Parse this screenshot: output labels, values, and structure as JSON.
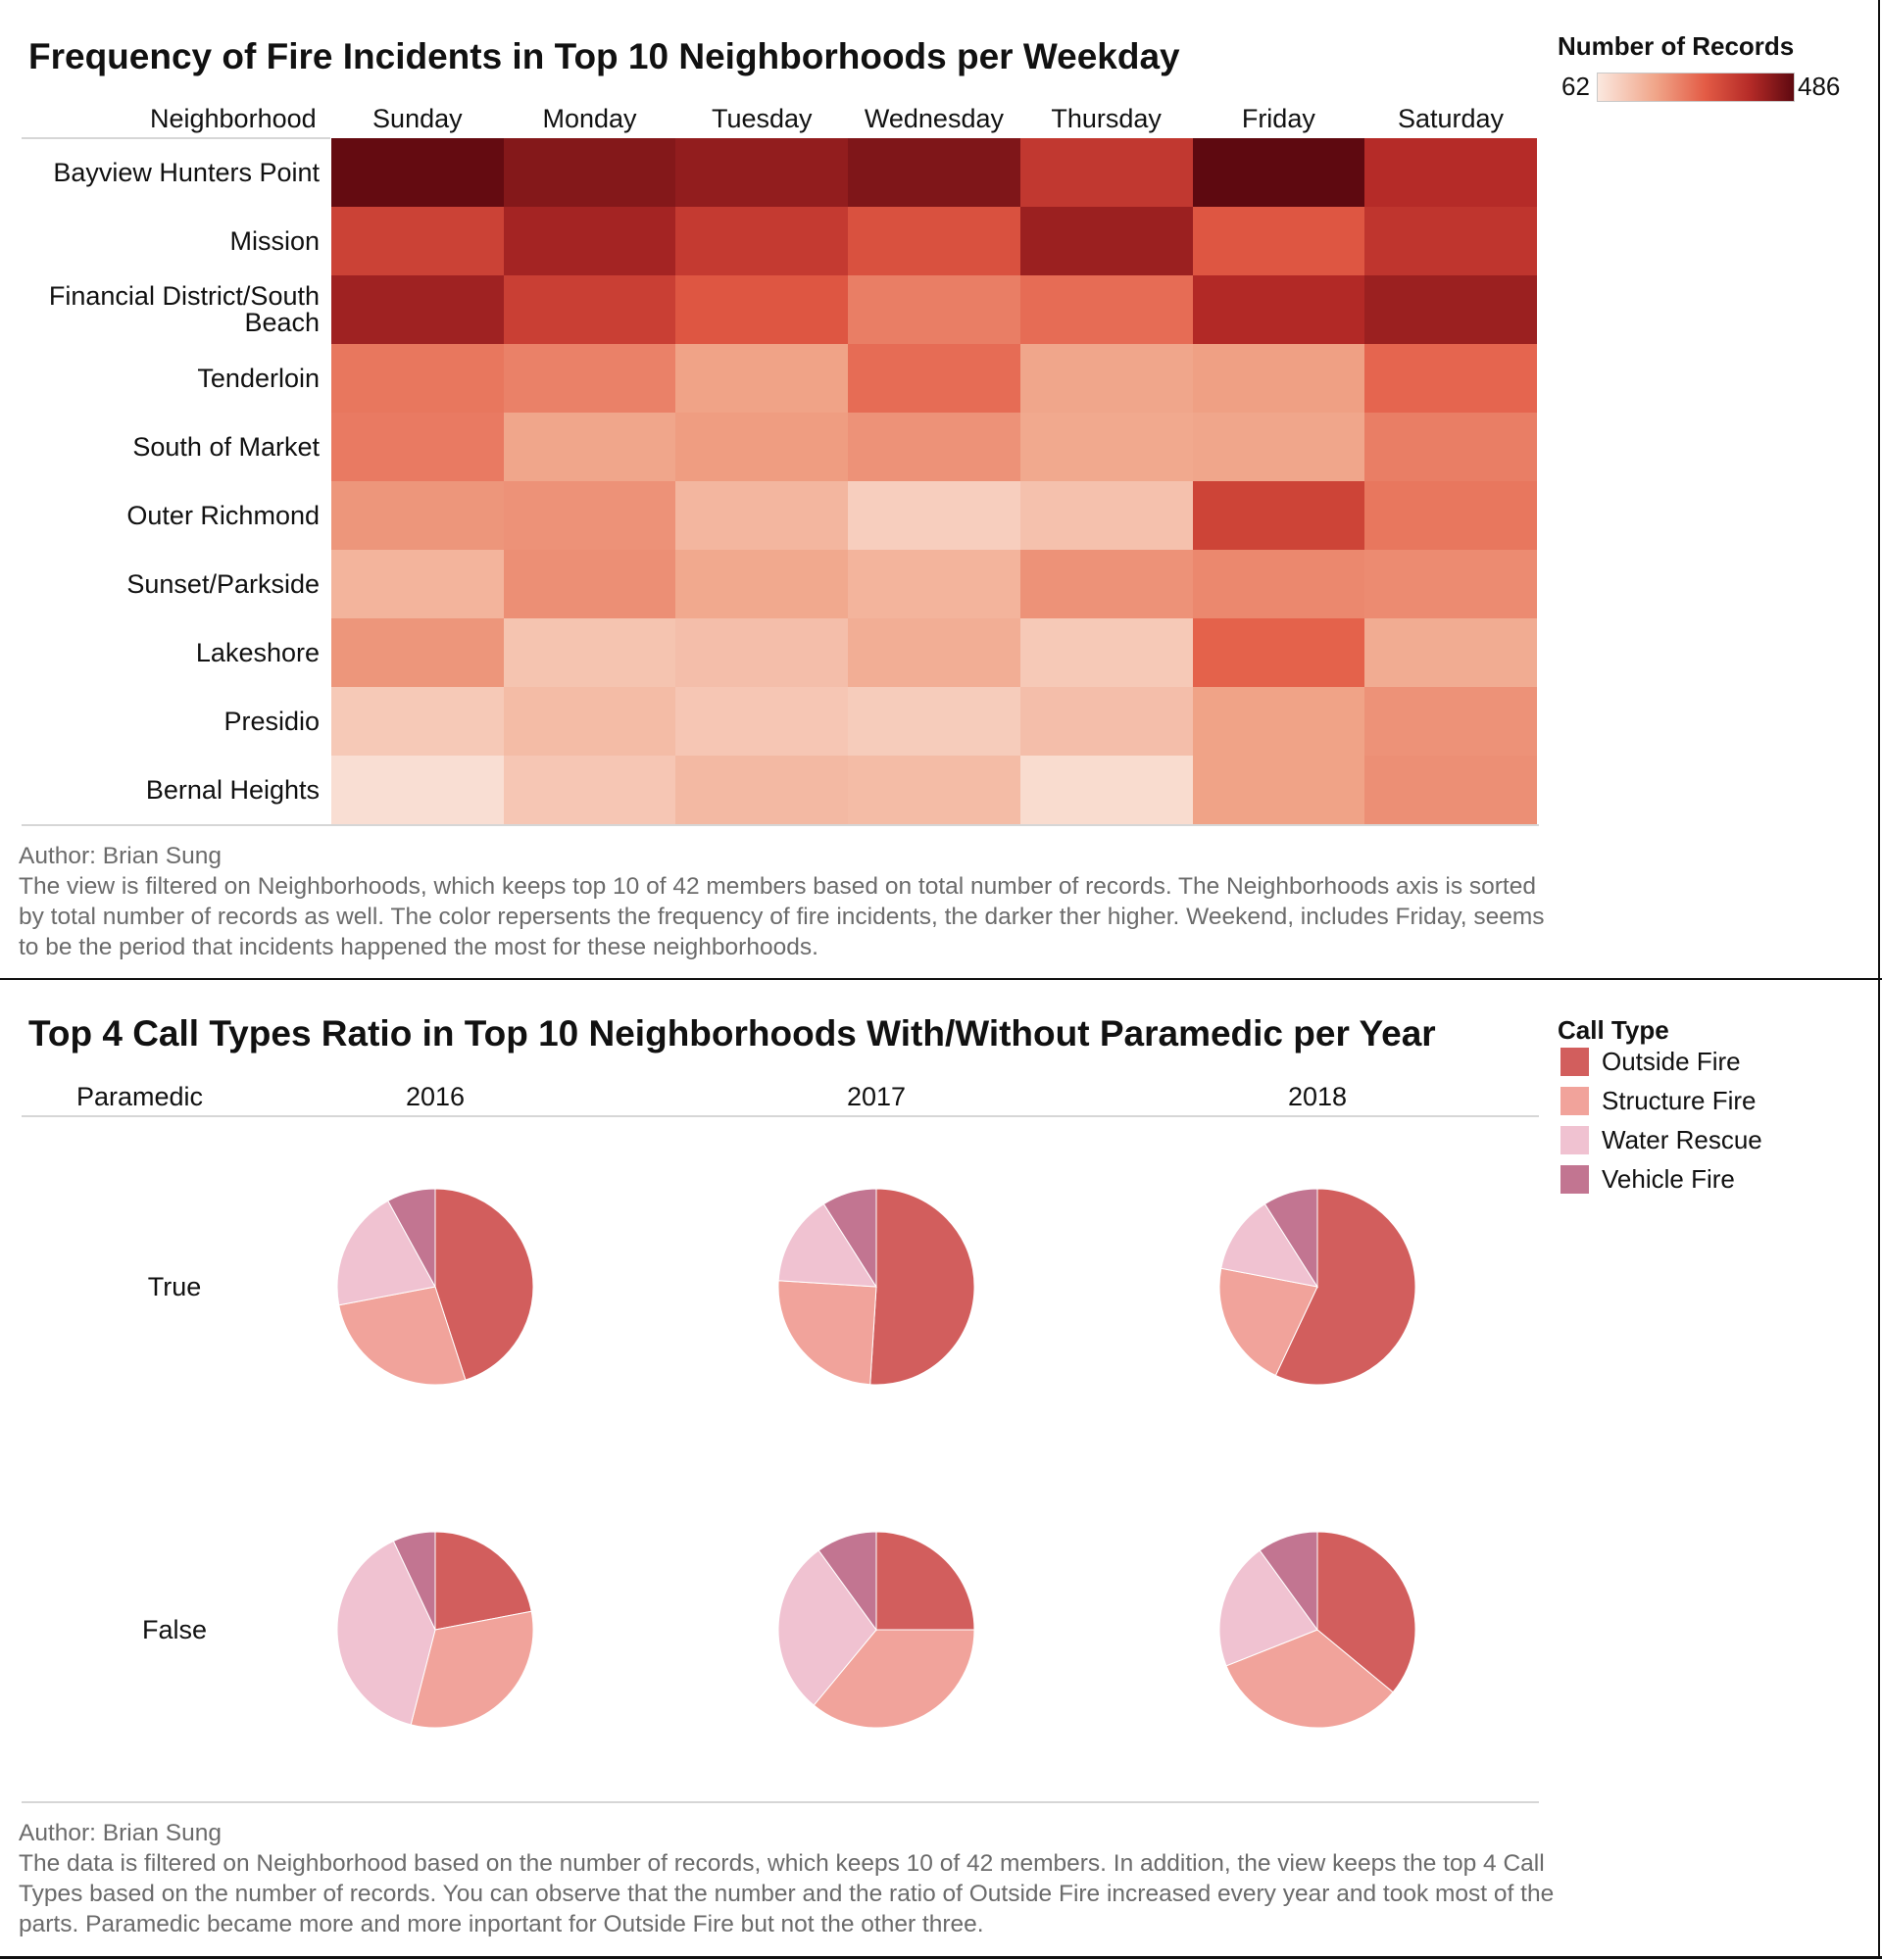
{
  "panel1": {
    "title": "Frequency of Fire Incidents in Top 10 Neighborhoods per Weekday",
    "row_header": "Neighborhood",
    "legend_title": "Number of Records",
    "legend_min": "62",
    "legend_max": "486",
    "caption": {
      "author": "Author: Brian Sung",
      "text": "The view is filtered on Neighborhoods, which keeps top 10 of 42 members based on total number of records. The Neighborhoods axis is sorted by total number of records as well. The color repersents the frequency of fire incidents, the darker ther higher. Weekend, includes Friday, seems to be the period that incidents happened the most for these neighborhoods."
    }
  },
  "panel2": {
    "title": "Top 4 Call Types Ratio in Top 10 Neighborhoods With/Without Paramedic per Year",
    "row_header": "Paramedic",
    "legend_title": "Call Type",
    "caption": {
      "author": "Author: Brian Sung",
      "text": "The data is filtered on Neighborhood based on the number of records, which keeps 10 of 42 members. In addition, the view keeps the top 4 Call Types based on the number of records. You can observe that the number and the ratio of Outside Fire increased every year and took most of the parts. Paramedic became more and more inportant for Outside Fire but not the other three."
    }
  },
  "colors": {
    "heat_low": "#fbe8df",
    "heat_mid1": "#f0a488",
    "heat_mid2": "#e35b45",
    "heat_mid3": "#b42a27",
    "heat_high": "#5e0910",
    "outside_fire": "#d25e5d",
    "structure_fire": "#f1a39b",
    "water_rescue": "#f0c2d1",
    "vehicle_fire": "#c27591"
  },
  "chart_data": [
    {
      "type": "heatmap",
      "title": "Frequency of Fire Incidents in Top 10 Neighborhoods per Weekday",
      "x": [
        "Sunday",
        "Monday",
        "Tuesday",
        "Wednesday",
        "Thursday",
        "Friday",
        "Saturday"
      ],
      "y": [
        "Bayview Hunters Point",
        "Mission",
        "Financial District/South Beach",
        "Tenderloin",
        "South of Market",
        "Outer Richmond",
        "Sunset/Parkside",
        "Lakeshore",
        "Presidio",
        "Bernal Heights"
      ],
      "color_label": "Number of Records",
      "color_range": [
        62,
        486
      ],
      "values": [
        [
          480,
          445,
          430,
          450,
          365,
          486,
          390
        ],
        [
          345,
          410,
          360,
          315,
          420,
          305,
          370
        ],
        [
          415,
          350,
          305,
          245,
          270,
          395,
          420
        ],
        [
          255,
          240,
          190,
          270,
          185,
          195,
          280
        ],
        [
          250,
          185,
          200,
          215,
          180,
          185,
          245
        ],
        [
          210,
          215,
          155,
          110,
          135,
          340,
          255
        ],
        [
          160,
          220,
          180,
          160,
          215,
          230,
          225
        ],
        [
          210,
          130,
          140,
          170,
          120,
          285,
          175
        ],
        [
          120,
          145,
          125,
          115,
          140,
          190,
          215
        ],
        [
          80,
          125,
          150,
          145,
          85,
          190,
          220
        ]
      ]
    },
    {
      "type": "pie",
      "title": "Top 4 Call Types Ratio in Top 10 Neighborhoods With/Without Paramedic per Year",
      "columns": [
        "2016",
        "2017",
        "2018"
      ],
      "rows": [
        "True",
        "False"
      ],
      "categories": [
        "Outside Fire",
        "Structure Fire",
        "Water Rescue",
        "Vehicle Fire"
      ],
      "legend_position": "top-right",
      "pies": [
        {
          "paramedic": "True",
          "year": "2016",
          "values": [
            45,
            27,
            20,
            8
          ]
        },
        {
          "paramedic": "True",
          "year": "2017",
          "values": [
            51,
            25,
            15,
            9
          ]
        },
        {
          "paramedic": "True",
          "year": "2018",
          "values": [
            57,
            21,
            13,
            9
          ]
        },
        {
          "paramedic": "False",
          "year": "2016",
          "values": [
            22,
            32,
            39,
            7
          ]
        },
        {
          "paramedic": "False",
          "year": "2017",
          "values": [
            25,
            36,
            29,
            10
          ]
        },
        {
          "paramedic": "False",
          "year": "2018",
          "values": [
            36,
            33,
            21,
            10
          ]
        }
      ]
    }
  ]
}
